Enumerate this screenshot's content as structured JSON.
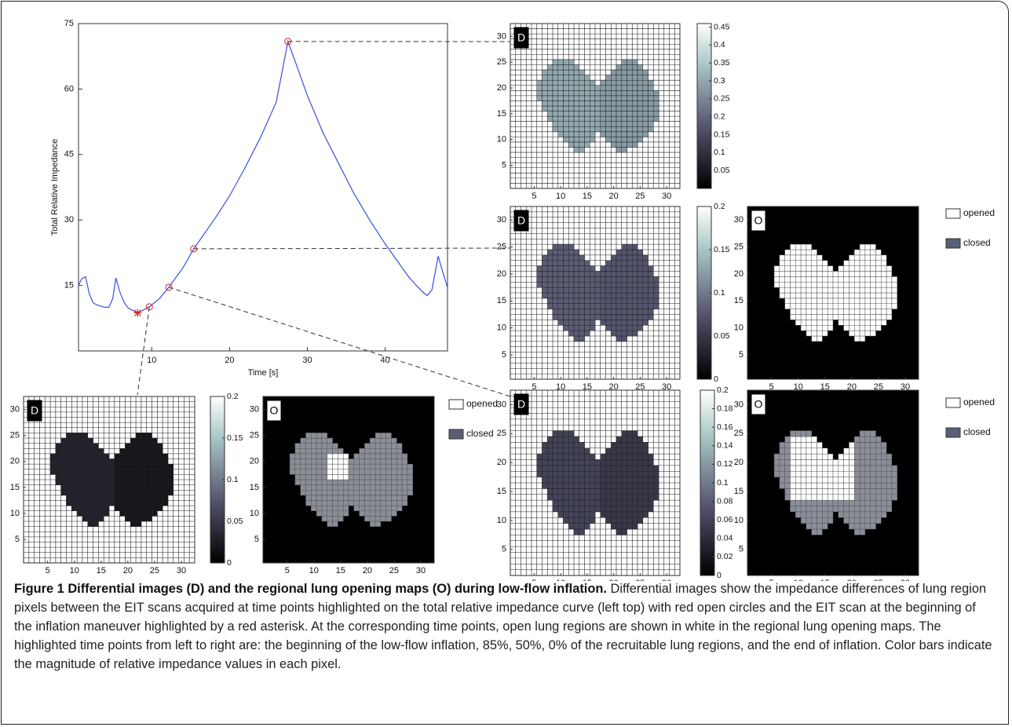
{
  "chart_data": [
    {
      "type": "line",
      "xlabel": "Time [s]",
      "ylabel": "Total Relative Impedance",
      "xlim": [
        0.6,
        48
      ],
      "ylim": [
        0,
        75
      ],
      "xticks": [
        10,
        20,
        30,
        40
      ],
      "yticks": [
        15,
        30,
        45,
        60,
        75
      ],
      "x": [
        0.6,
        1,
        1.5,
        2,
        2.5,
        3,
        4,
        4.5,
        5,
        5.4,
        6,
        6.5,
        7,
        8.2,
        9.7,
        11,
        12.2,
        14,
        15.4,
        18,
        20,
        22,
        24,
        26,
        27.5,
        28.5,
        30,
        32,
        34,
        36,
        38,
        40,
        42,
        43,
        44,
        45,
        45.4,
        46,
        46.8,
        47.4,
        48
      ],
      "series": [
        {
          "color": "#3a4fe0",
          "values": [
            15,
            16.5,
            17,
            13,
            11,
            10.5,
            10,
            10,
            12,
            16.7,
            13,
            11,
            9.8,
            8.7,
            10.1,
            12,
            14.6,
            19,
            23.4,
            30,
            35.5,
            42,
            49,
            57,
            70.9,
            66,
            58.5,
            50,
            43,
            36,
            30,
            24.5,
            19.5,
            17,
            15,
            13.2,
            12.7,
            14,
            21.7,
            18,
            14.5
          ]
        }
      ],
      "asterisk": {
        "x": 8.2,
        "y": 8.7,
        "color": "#e02020"
      },
      "circles": {
        "x": [
          9.7,
          12.2,
          15.4,
          27.5
        ],
        "y": [
          10.1,
          14.6,
          23.4,
          70.9
        ],
        "color": "#e02020"
      }
    },
    {
      "type": "heatmap",
      "panel": "D",
      "xlim": [
        0.5,
        32.5
      ],
      "ylim": [
        0.5,
        32.5
      ],
      "xticks": [
        5,
        10,
        15,
        20,
        25,
        30
      ],
      "yticks": [
        5,
        10,
        15,
        20,
        25,
        30
      ],
      "lobe_values": [
        0.3,
        0.28
      ],
      "clim": [
        0,
        0.46
      ],
      "cticks": [
        0.05,
        0.1,
        0.15,
        0.2,
        0.25,
        0.3,
        0.35,
        0.4,
        0.45
      ]
    },
    {
      "type": "heatmap",
      "panel": "D",
      "xlim": [
        0.5,
        32.5
      ],
      "ylim": [
        0.5,
        32.5
      ],
      "xticks": [
        5,
        10,
        15,
        20,
        25,
        30
      ],
      "yticks": [
        5,
        10,
        15,
        20,
        25,
        30
      ],
      "lobe_values": [
        0.08,
        0.075
      ],
      "clim": [
        0,
        0.2
      ],
      "cticks": [
        0,
        0.05,
        0.1,
        0.15,
        0.2
      ]
    },
    {
      "type": "openmap",
      "panel": "O",
      "xlim": [
        0.5,
        32.5
      ],
      "ylim": [
        0.5,
        32.5
      ],
      "xticks": [
        5,
        10,
        15,
        20,
        25,
        30
      ],
      "yticks": [
        5,
        10,
        15,
        20,
        25,
        30
      ],
      "open_box": [
        1,
        32,
        1,
        32
      ],
      "legend": [
        "opened",
        "closed"
      ],
      "colors": [
        "#ffffff",
        "#8a8e98"
      ]
    },
    {
      "type": "heatmap",
      "panel": "D",
      "xlim": [
        0.5,
        32.5
      ],
      "ylim": [
        0.5,
        32.5
      ],
      "xticks": [
        5,
        10,
        15,
        20,
        25,
        30
      ],
      "yticks": [
        5,
        10,
        15,
        20,
        25,
        30
      ],
      "lobe_values": [
        0.03,
        0.02
      ],
      "clim": [
        0,
        0.2
      ],
      "cticks": [
        0,
        0.05,
        0.1,
        0.15,
        0.2
      ]
    },
    {
      "type": "openmap",
      "panel": "O",
      "xlim": [
        0.5,
        32.5
      ],
      "ylim": [
        0.5,
        32.5
      ],
      "xticks": [
        5,
        10,
        15,
        20,
        25,
        30
      ],
      "yticks": [
        5,
        10,
        15,
        20,
        25,
        30
      ],
      "open_box": [
        13,
        16,
        17,
        21
      ],
      "legend": [
        "opened",
        "closed"
      ],
      "colors": [
        "#ffffff",
        "#8a8e98"
      ]
    },
    {
      "type": "heatmap",
      "panel": "D",
      "xlim": [
        0.5,
        32.5
      ],
      "ylim": [
        0.5,
        32.5
      ],
      "xticks": [
        5,
        10,
        15,
        20,
        25,
        30
      ],
      "yticks": [
        5,
        10,
        15,
        20,
        25,
        30
      ],
      "lobe_values": [
        0.06,
        0.05
      ],
      "clim": [
        0,
        0.2
      ],
      "cticks": [
        0,
        0.02,
        0.04,
        0.06,
        0.08,
        0.1,
        0.12,
        0.14,
        0.16,
        0.18,
        0.2
      ]
    },
    {
      "type": "openmap",
      "panel": "O",
      "xlim": [
        0.5,
        32.5
      ],
      "ylim": [
        0.5,
        32.5
      ],
      "xticks": [
        5,
        10,
        15,
        20,
        25,
        30
      ],
      "yticks": [
        5,
        10,
        15,
        20,
        25,
        30
      ],
      "open_box": [
        9,
        20,
        14,
        24
      ],
      "legend": [
        "opened",
        "closed"
      ],
      "colors": [
        "#ffffff",
        "#8a8e98"
      ]
    }
  ],
  "lung_rows": [
    {
      "y": 8,
      "spans": [
        [
          13,
          14
        ],
        [
          21,
          22
        ]
      ]
    },
    {
      "y": 9,
      "spans": [
        [
          12,
          15
        ],
        [
          20,
          24
        ]
      ]
    },
    {
      "y": 10,
      "spans": [
        [
          11,
          16
        ],
        [
          19,
          25
        ]
      ]
    },
    {
      "y": 11,
      "spans": [
        [
          10,
          16
        ],
        [
          18,
          26
        ]
      ]
    },
    {
      "y": 12,
      "spans": [
        [
          9,
          27
        ]
      ]
    },
    {
      "y": 13,
      "spans": [
        [
          9,
          27
        ]
      ]
    },
    {
      "y": 14,
      "spans": [
        [
          8,
          28
        ]
      ]
    },
    {
      "y": 15,
      "spans": [
        [
          8,
          28
        ]
      ]
    },
    {
      "y": 16,
      "spans": [
        [
          7,
          28
        ]
      ]
    },
    {
      "y": 17,
      "spans": [
        [
          7,
          28
        ]
      ]
    },
    {
      "y": 18,
      "spans": [
        [
          6,
          28
        ]
      ]
    },
    {
      "y": 19,
      "spans": [
        [
          6,
          28
        ]
      ]
    },
    {
      "y": 20,
      "spans": [
        [
          6,
          27
        ]
      ]
    },
    {
      "y": 21,
      "spans": [
        [
          6,
          16
        ],
        [
          18,
          27
        ]
      ]
    },
    {
      "y": 22,
      "spans": [
        [
          7,
          15
        ],
        [
          19,
          26
        ]
      ]
    },
    {
      "y": 23,
      "spans": [
        [
          7,
          14
        ],
        [
          20,
          26
        ]
      ]
    },
    {
      "y": 24,
      "spans": [
        [
          8,
          13
        ],
        [
          21,
          25
        ]
      ]
    },
    {
      "y": 25,
      "spans": [
        [
          9,
          12
        ],
        [
          22,
          24
        ]
      ]
    }
  ],
  "caption": {
    "label": "Figure 1",
    "title": "Differential images (D) and the regional lung opening maps (O) during low-flow inflation.",
    "text": "Differential images show the impedance differences of lung region pixels between the EIT scans acquired at time points highlighted on the total relative impedance curve (left top) with red open circles and the EIT scan at the beginning of the inflation maneuver highlighted by a red asterisk. At the corresponding time points, open lung regions are shown in white in the regional lung opening maps. The highlighted time points from left to right are: the beginning of the low-flow inflation, 85%, 50%, 0% of the recruitable lung regions, and the end of inflation. Color bars indicate the magnitude of relative impedance values in each pixel."
  }
}
